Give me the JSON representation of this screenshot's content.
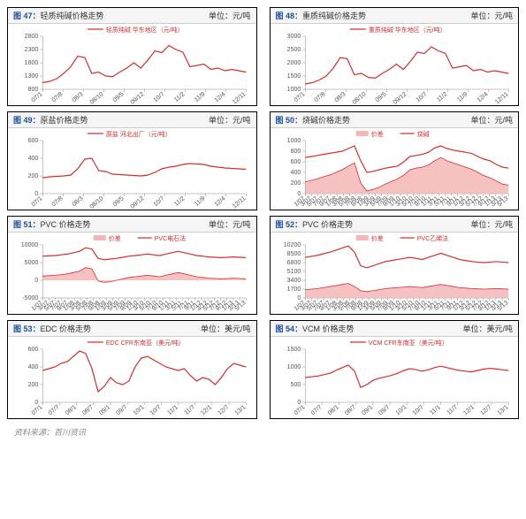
{
  "source": "资料来源：百川资讯",
  "charts": [
    {
      "n": "图 47：",
      "t": "轻质纯碱价格走势",
      "u": "单位：元/吨",
      "type": "line",
      "legend": [
        "轻质纯碱 华东地区（元/吨）"
      ],
      "ylim": [
        800,
        2800
      ],
      "yticks": [
        800,
        1300,
        1800,
        2300,
        2800
      ],
      "xticks": [
        "07/1",
        "07/8",
        "08/3",
        "08/10",
        "09/5",
        "09/12",
        "10/7",
        "11/2",
        "11/9",
        "12/4",
        "12/11"
      ],
      "colors": {
        "line": "#d62d2d"
      },
      "series": [
        [
          1050,
          1100,
          1200,
          1400,
          1650,
          2050,
          2000,
          1400,
          1450,
          1300,
          1280,
          1450,
          1600,
          1800,
          1600,
          1900,
          2250,
          2180,
          2450,
          2300,
          2200,
          1650,
          1700,
          1750,
          1550,
          1600,
          1500,
          1550,
          1500,
          1450
        ]
      ]
    },
    {
      "n": "图 48：",
      "t": "重质纯碱价格走势",
      "u": "单位：元/吨",
      "type": "line",
      "legend": [
        "重质纯碱 华东地区（元/吨）"
      ],
      "ylim": [
        1000,
        3000
      ],
      "yticks": [
        1000,
        1500,
        2000,
        2500,
        3000
      ],
      "xticks": [
        "07/1",
        "07/8",
        "08/3",
        "08/10",
        "09/5",
        "09/12",
        "10/7",
        "11/2",
        "11/9",
        "12/4",
        "12/11"
      ],
      "colors": {
        "line": "#d62d2d"
      },
      "series": [
        [
          1200,
          1250,
          1350,
          1500,
          1800,
          2200,
          2150,
          1550,
          1600,
          1450,
          1420,
          1600,
          1750,
          1950,
          1750,
          2050,
          2400,
          2350,
          2600,
          2450,
          2350,
          1800,
          1850,
          1900,
          1700,
          1750,
          1650,
          1700,
          1650,
          1600
        ]
      ]
    },
    {
      "n": "图 49：",
      "t": "原盐价格走势",
      "u": "单位：元/吨",
      "type": "line",
      "legend": [
        "原盐 河北出厂（元/吨）"
      ],
      "ylim": [
        0,
        600
      ],
      "yticks": [
        0,
        200,
        400,
        600
      ],
      "xticks": [
        "07/1",
        "07/8",
        "08/3",
        "08/10",
        "09/5",
        "09/12",
        "10/7",
        "11/2",
        "11/9",
        "12/4",
        "12/11"
      ],
      "colors": {
        "line": "#d62d2d"
      },
      "series": [
        [
          180,
          190,
          195,
          200,
          210,
          280,
          390,
          400,
          260,
          250,
          220,
          215,
          210,
          205,
          200,
          210,
          240,
          280,
          300,
          310,
          330,
          340,
          335,
          330,
          310,
          300,
          290,
          285,
          280,
          275
        ]
      ]
    },
    {
      "n": "图 50：",
      "t": "烧碱价格走势",
      "u": "单位：元/吨",
      "type": "line+area",
      "legend": [
        "价差",
        "烧碱"
      ],
      "ylim": [
        0,
        1000
      ],
      "yticks": [
        0,
        200,
        400,
        600,
        800,
        1000
      ],
      "xticks": [
        "1/07",
        "3/07",
        "5/07",
        "7/07",
        "9/07",
        "1/08",
        "3/08",
        "5/08",
        "7/08",
        "9/08",
        "1/09",
        "3/09",
        "5/09",
        "7/09",
        "9/09",
        "1/10",
        "3/10",
        "5/10",
        "7/10",
        "9/10",
        "1/11",
        "3/11",
        "5/11",
        "7/11",
        "9/11",
        "1/12",
        "3/12",
        "5/12",
        "7/12",
        "9/12",
        "1/13",
        "3/13",
        "5/13"
      ],
      "colors": {
        "line": "#d62d2d",
        "area": "#f4b6b6"
      },
      "series": [
        [
          680,
          700,
          720,
          740,
          760,
          780,
          800,
          850,
          900,
          620,
          400,
          420,
          450,
          480,
          500,
          520,
          600,
          700,
          720,
          740,
          780,
          860,
          900,
          850,
          820,
          800,
          780,
          760,
          700,
          650,
          620,
          550,
          500,
          480
        ],
        [
          220,
          250,
          280,
          320,
          350,
          400,
          450,
          520,
          580,
          200,
          50,
          80,
          120,
          180,
          230,
          280,
          350,
          450,
          480,
          500,
          540,
          620,
          680,
          620,
          580,
          540,
          500,
          460,
          400,
          340,
          300,
          240,
          180,
          160
        ]
      ]
    },
    {
      "n": "图 51：",
      "t": "PVC 价格走势",
      "u": "单位：元/吨",
      "type": "line+area",
      "legend": [
        "价差",
        "PVC电石法"
      ],
      "ylim": [
        -5000,
        10000
      ],
      "yticks": [
        -5000,
        0,
        5000,
        10000
      ],
      "xticks": [
        "1/07",
        "3/07",
        "5/07",
        "7/07",
        "9/07",
        "1/08",
        "3/08",
        "5/08",
        "7/08",
        "9/08",
        "1/09",
        "3/09",
        "5/09",
        "7/09",
        "9/09",
        "1/10",
        "3/10",
        "5/10",
        "7/10",
        "9/10",
        "1/11",
        "3/11",
        "5/11",
        "7/11",
        "9/11",
        "1/12",
        "3/12",
        "5/12",
        "7/12",
        "9/12",
        "1/13",
        "3/13",
        "5/13"
      ],
      "colors": {
        "line": "#d62d2d",
        "area": "#f4b6b6"
      },
      "series": [
        [
          6800,
          6900,
          7000,
          7200,
          7400,
          7800,
          8200,
          9200,
          8800,
          6200,
          5800,
          6000,
          6200,
          6500,
          6800,
          7000,
          7200,
          7400,
          7200,
          7000,
          7400,
          7800,
          8200,
          7800,
          7400,
          7000,
          6800,
          6600,
          6500,
          6400,
          6500,
          6600,
          6500,
          6400
        ],
        [
          1200,
          1300,
          1400,
          1600,
          1800,
          2200,
          2600,
          3600,
          3200,
          -200,
          -600,
          -400,
          0,
          400,
          800,
          1000,
          1200,
          1400,
          1200,
          1000,
          1400,
          1800,
          2200,
          1800,
          1400,
          1000,
          800,
          600,
          500,
          400,
          500,
          600,
          500,
          400
        ]
      ]
    },
    {
      "n": "图 52：",
      "t": "PVC 价格走势",
      "u": "单位：元/吨",
      "type": "line+area",
      "legend": [
        "价差",
        "PVC乙烯法"
      ],
      "ylim": [
        0,
        10200
      ],
      "yticks": [
        0,
        1700,
        3400,
        5100,
        6800,
        8500,
        10200
      ],
      "xticks": [
        "1/07",
        "3/07",
        "5/07",
        "7/07",
        "9/07",
        "1/08",
        "3/08",
        "5/08",
        "7/08",
        "9/08",
        "1/09",
        "3/09",
        "5/09",
        "7/09",
        "9/09",
        "1/10",
        "3/10",
        "5/10",
        "7/10",
        "9/10",
        "1/11",
        "3/11",
        "5/11",
        "7/11",
        "9/11",
        "1/12",
        "3/12",
        "5/12",
        "7/12",
        "9/12",
        "1/13",
        "3/13",
        "5/13"
      ],
      "colors": {
        "line": "#d62d2d",
        "area": "#f4b6b6"
      },
      "series": [
        [
          7800,
          8000,
          8200,
          8500,
          8800,
          9200,
          9600,
          10000,
          8800,
          6200,
          5800,
          6200,
          6600,
          7000,
          7200,
          7400,
          7600,
          7800,
          7600,
          7400,
          7800,
          8200,
          8600,
          8200,
          7800,
          7400,
          7200,
          7000,
          6900,
          6800,
          6900,
          7000,
          6900,
          6800
        ],
        [
          1600,
          1700,
          1800,
          2000,
          2200,
          2400,
          2600,
          2800,
          2200,
          1400,
          1200,
          1400,
          1600,
          1800,
          1900,
          2000,
          2100,
          2200,
          2100,
          2000,
          2200,
          2400,
          2600,
          2400,
          2200,
          2000,
          1900,
          1800,
          1750,
          1700,
          1750,
          1800,
          1750,
          1700
        ]
      ]
    },
    {
      "n": "图 53：",
      "t": "EDC 价格走势",
      "u": "单位：美元/吨",
      "type": "line",
      "legend": [
        "EDC CFR东南亚（美元/吨）"
      ],
      "ylim": [
        0,
        600
      ],
      "yticks": [
        0,
        200,
        400,
        600
      ],
      "xticks": [
        "07/1",
        "07/7",
        "08/1",
        "08/7",
        "09/1",
        "09/7",
        "10/1",
        "10/7",
        "11/1",
        "11/7",
        "12/1",
        "12/7",
        "13/1"
      ],
      "colors": {
        "line": "#d62d2d"
      },
      "series": [
        [
          360,
          380,
          400,
          440,
          460,
          520,
          580,
          550,
          380,
          120,
          180,
          280,
          220,
          200,
          240,
          400,
          500,
          520,
          480,
          440,
          400,
          380,
          360,
          380,
          300,
          240,
          280,
          260,
          200,
          280,
          380,
          440,
          420,
          400
        ]
      ]
    },
    {
      "n": "图 54：",
      "t": "VCM 价格走势",
      "u": "单位：美元/吨",
      "type": "line",
      "legend": [
        "VCM CFR东南亚（美元/吨）"
      ],
      "ylim": [
        0,
        1500
      ],
      "yticks": [
        0,
        500,
        1000,
        1500
      ],
      "xticks": [
        "07/1",
        "07/7",
        "08/1",
        "08/7",
        "09/1",
        "09/7",
        "10/1",
        "10/7",
        "11/1",
        "11/7",
        "12/1",
        "12/7",
        "13/1"
      ],
      "colors": {
        "line": "#d62d2d"
      },
      "series": [
        [
          700,
          720,
          740,
          780,
          820,
          900,
          980,
          1050,
          880,
          420,
          500,
          620,
          680,
          720,
          760,
          820,
          900,
          950,
          920,
          880,
          920,
          980,
          1020,
          980,
          940,
          900,
          880,
          860,
          900,
          940,
          960,
          940,
          920,
          900
        ]
      ]
    }
  ]
}
